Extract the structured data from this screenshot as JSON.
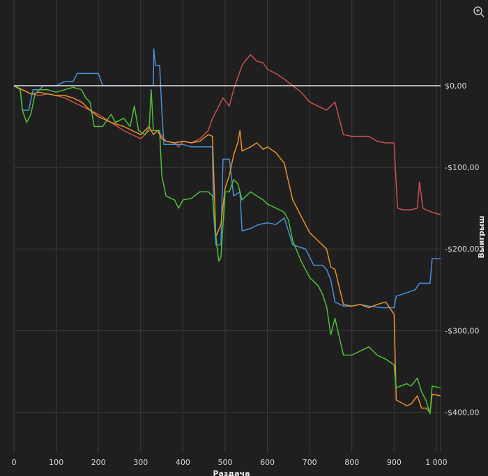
{
  "toolbar": {
    "zoom_icon": "zoom-in-icon"
  },
  "colors": {
    "background": "#1f1f1f",
    "grid": "#3a3a3a",
    "zero_line": "#e8e8e8",
    "text": "#d8d8d8"
  },
  "chart_data": {
    "type": "line",
    "title": "",
    "xlabel": "Раздача",
    "ylabel": "Выигрыш",
    "xlim": [
      0,
      1010
    ],
    "ylim": [
      -450,
      105
    ],
    "x_ticks": [
      {
        "value": 0,
        "label": "0"
      },
      {
        "value": 100,
        "label": "100"
      },
      {
        "value": 200,
        "label": "200"
      },
      {
        "value": 300,
        "label": "300"
      },
      {
        "value": 400,
        "label": "400"
      },
      {
        "value": 500,
        "label": "500"
      },
      {
        "value": 600,
        "label": "600"
      },
      {
        "value": 700,
        "label": "700"
      },
      {
        "value": 800,
        "label": "800"
      },
      {
        "value": 900,
        "label": "900"
      },
      {
        "value": 1000,
        "label": "1 000"
      }
    ],
    "y_ticks": [
      {
        "value": 0,
        "label": "$0,00"
      },
      {
        "value": -100,
        "label": "-$100,00"
      },
      {
        "value": -200,
        "label": "-$200,00"
      },
      {
        "value": -300,
        "label": "-$300,00"
      },
      {
        "value": -400,
        "label": "-$400,00"
      }
    ],
    "grid": true,
    "legend": "none",
    "reference_line": {
      "value": 0
    },
    "series": [
      {
        "color": "#c9504f",
        "points": [
          [
            0,
            0
          ],
          [
            20,
            -5
          ],
          [
            40,
            -10
          ],
          [
            60,
            -12
          ],
          [
            80,
            -10
          ],
          [
            100,
            -12
          ],
          [
            120,
            -15
          ],
          [
            140,
            -20
          ],
          [
            160,
            -25
          ],
          [
            180,
            -30
          ],
          [
            200,
            -35
          ],
          [
            230,
            -45
          ],
          [
            260,
            -55
          ],
          [
            280,
            -60
          ],
          [
            300,
            -65
          ],
          [
            320,
            -55
          ],
          [
            340,
            -55
          ],
          [
            360,
            -68
          ],
          [
            380,
            -70
          ],
          [
            390,
            -75
          ],
          [
            400,
            -68
          ],
          [
            420,
            -70
          ],
          [
            440,
            -65
          ],
          [
            460,
            -55
          ],
          [
            470,
            -40
          ],
          [
            480,
            -30
          ],
          [
            495,
            -15
          ],
          [
            510,
            -25
          ],
          [
            520,
            -5
          ],
          [
            530,
            10
          ],
          [
            540,
            25
          ],
          [
            550,
            32
          ],
          [
            560,
            38
          ],
          [
            575,
            30
          ],
          [
            590,
            28
          ],
          [
            600,
            20
          ],
          [
            620,
            15
          ],
          [
            640,
            8
          ],
          [
            660,
            0
          ],
          [
            680,
            -8
          ],
          [
            700,
            -20
          ],
          [
            720,
            -25
          ],
          [
            740,
            -30
          ],
          [
            760,
            -20
          ],
          [
            780,
            -60
          ],
          [
            800,
            -62
          ],
          [
            820,
            -62
          ],
          [
            840,
            -62
          ],
          [
            860,
            -68
          ],
          [
            880,
            -70
          ],
          [
            900,
            -70
          ],
          [
            908,
            -150
          ],
          [
            920,
            -152
          ],
          [
            940,
            -152
          ],
          [
            955,
            -150
          ],
          [
            960,
            -118
          ],
          [
            968,
            -150
          ],
          [
            975,
            -152
          ],
          [
            990,
            -155
          ],
          [
            1010,
            -158
          ]
        ]
      },
      {
        "color": "#4a90d9",
        "points": [
          [
            0,
            0
          ],
          [
            15,
            -5
          ],
          [
            20,
            -30
          ],
          [
            35,
            -30
          ],
          [
            45,
            -5
          ],
          [
            60,
            -5
          ],
          [
            70,
            0
          ],
          [
            100,
            0
          ],
          [
            120,
            5
          ],
          [
            140,
            5
          ],
          [
            150,
            15
          ],
          [
            200,
            15
          ],
          [
            210,
            0
          ],
          [
            330,
            0
          ],
          [
            331,
            45
          ],
          [
            335,
            25
          ],
          [
            345,
            25
          ],
          [
            350,
            -30
          ],
          [
            355,
            -72
          ],
          [
            400,
            -72
          ],
          [
            420,
            -75
          ],
          [
            470,
            -75
          ],
          [
            472,
            -150
          ],
          [
            478,
            -195
          ],
          [
            490,
            -195
          ],
          [
            495,
            -90
          ],
          [
            510,
            -90
          ],
          [
            520,
            -135
          ],
          [
            535,
            -130
          ],
          [
            540,
            -178
          ],
          [
            560,
            -175
          ],
          [
            580,
            -170
          ],
          [
            600,
            -168
          ],
          [
            620,
            -170
          ],
          [
            640,
            -162
          ],
          [
            660,
            -195
          ],
          [
            690,
            -200
          ],
          [
            710,
            -220
          ],
          [
            730,
            -220
          ],
          [
            740,
            -225
          ],
          [
            750,
            -238
          ],
          [
            760,
            -265
          ],
          [
            780,
            -270
          ],
          [
            800,
            -270
          ],
          [
            820,
            -268
          ],
          [
            840,
            -270
          ],
          [
            870,
            -272
          ],
          [
            900,
            -272
          ],
          [
            905,
            -258
          ],
          [
            950,
            -250
          ],
          [
            960,
            -242
          ],
          [
            970,
            -242
          ],
          [
            975,
            -242
          ],
          [
            985,
            -242
          ],
          [
            990,
            -212
          ],
          [
            1010,
            -212
          ]
        ]
      },
      {
        "color": "#e8922f",
        "points": [
          [
            0,
            0
          ],
          [
            20,
            -5
          ],
          [
            40,
            -10
          ],
          [
            60,
            -8
          ],
          [
            80,
            -10
          ],
          [
            100,
            -12
          ],
          [
            120,
            -12
          ],
          [
            140,
            -15
          ],
          [
            160,
            -20
          ],
          [
            180,
            -30
          ],
          [
            200,
            -38
          ],
          [
            230,
            -45
          ],
          [
            260,
            -50
          ],
          [
            280,
            -55
          ],
          [
            300,
            -60
          ],
          [
            320,
            -50
          ],
          [
            330,
            -60
          ],
          [
            340,
            -55
          ],
          [
            350,
            -65
          ],
          [
            360,
            -68
          ],
          [
            380,
            -70
          ],
          [
            400,
            -68
          ],
          [
            420,
            -70
          ],
          [
            440,
            -68
          ],
          [
            460,
            -60
          ],
          [
            470,
            -62
          ],
          [
            478,
            -185
          ],
          [
            490,
            -170
          ],
          [
            500,
            -125
          ],
          [
            510,
            -110
          ],
          [
            520,
            -85
          ],
          [
            530,
            -70
          ],
          [
            535,
            -55
          ],
          [
            540,
            -80
          ],
          [
            560,
            -75
          ],
          [
            575,
            -70
          ],
          [
            590,
            -78
          ],
          [
            600,
            -75
          ],
          [
            620,
            -82
          ],
          [
            640,
            -95
          ],
          [
            650,
            -118
          ],
          [
            660,
            -140
          ],
          [
            680,
            -160
          ],
          [
            700,
            -180
          ],
          [
            720,
            -190
          ],
          [
            740,
            -200
          ],
          [
            750,
            -222
          ],
          [
            760,
            -225
          ],
          [
            780,
            -268
          ],
          [
            800,
            -270
          ],
          [
            820,
            -268
          ],
          [
            840,
            -272
          ],
          [
            860,
            -268
          ],
          [
            880,
            -265
          ],
          [
            900,
            -280
          ],
          [
            905,
            -385
          ],
          [
            930,
            -392
          ],
          [
            940,
            -390
          ],
          [
            955,
            -380
          ],
          [
            965,
            -395
          ],
          [
            975,
            -395
          ],
          [
            985,
            -400
          ],
          [
            990,
            -378
          ],
          [
            1010,
            -380
          ]
        ]
      },
      {
        "color": "#4fbf3a",
        "points": [
          [
            0,
            0
          ],
          [
            15,
            -5
          ],
          [
            20,
            -30
          ],
          [
            30,
            -45
          ],
          [
            40,
            -35
          ],
          [
            50,
            -10
          ],
          [
            60,
            -5
          ],
          [
            80,
            -5
          ],
          [
            100,
            -8
          ],
          [
            120,
            -5
          ],
          [
            140,
            -2
          ],
          [
            160,
            -5
          ],
          [
            170,
            -15
          ],
          [
            180,
            -20
          ],
          [
            190,
            -50
          ],
          [
            210,
            -50
          ],
          [
            230,
            -35
          ],
          [
            240,
            -45
          ],
          [
            260,
            -40
          ],
          [
            275,
            -50
          ],
          [
            285,
            -25
          ],
          [
            295,
            -55
          ],
          [
            310,
            -60
          ],
          [
            320,
            -52
          ],
          [
            325,
            -5
          ],
          [
            330,
            -55
          ],
          [
            345,
            -55
          ],
          [
            350,
            -110
          ],
          [
            360,
            -135
          ],
          [
            380,
            -140
          ],
          [
            390,
            -150
          ],
          [
            400,
            -140
          ],
          [
            420,
            -138
          ],
          [
            440,
            -130
          ],
          [
            460,
            -130
          ],
          [
            470,
            -135
          ],
          [
            475,
            -165
          ],
          [
            480,
            -195
          ],
          [
            485,
            -215
          ],
          [
            490,
            -210
          ],
          [
            500,
            -130
          ],
          [
            510,
            -130
          ],
          [
            520,
            -115
          ],
          [
            530,
            -120
          ],
          [
            540,
            -140
          ],
          [
            560,
            -130
          ],
          [
            575,
            -135
          ],
          [
            590,
            -140
          ],
          [
            600,
            -145
          ],
          [
            620,
            -150
          ],
          [
            640,
            -155
          ],
          [
            650,
            -165
          ],
          [
            660,
            -190
          ],
          [
            680,
            -215
          ],
          [
            700,
            -235
          ],
          [
            720,
            -245
          ],
          [
            730,
            -255
          ],
          [
            740,
            -270
          ],
          [
            750,
            -305
          ],
          [
            760,
            -285
          ],
          [
            780,
            -330
          ],
          [
            800,
            -330
          ],
          [
            820,
            -325
          ],
          [
            840,
            -320
          ],
          [
            860,
            -330
          ],
          [
            880,
            -335
          ],
          [
            900,
            -342
          ],
          [
            905,
            -370
          ],
          [
            930,
            -365
          ],
          [
            940,
            -368
          ],
          [
            955,
            -358
          ],
          [
            965,
            -375
          ],
          [
            975,
            -385
          ],
          [
            985,
            -402
          ],
          [
            990,
            -368
          ],
          [
            1010,
            -370
          ]
        ]
      }
    ]
  }
}
